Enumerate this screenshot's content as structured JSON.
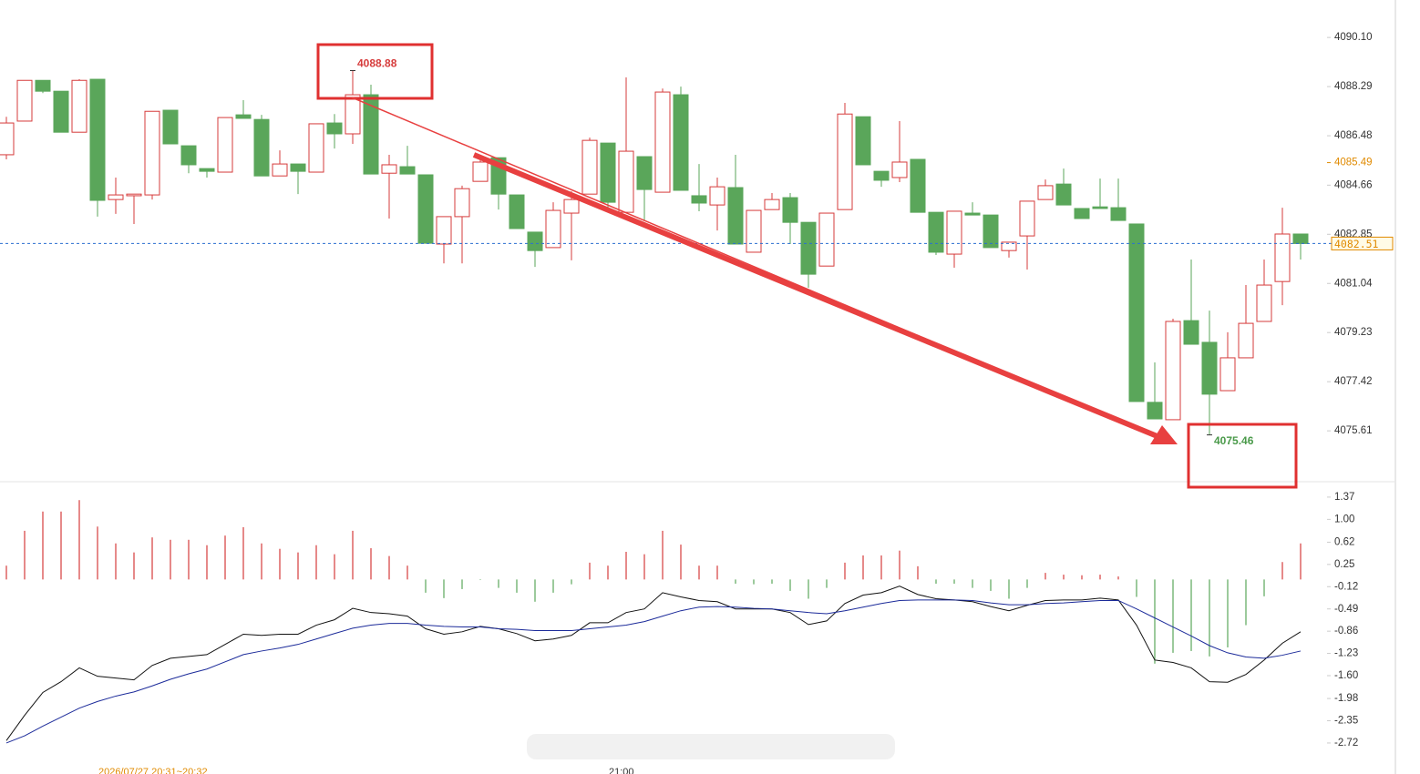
{
  "chart_data": [
    {
      "type": "candlestick",
      "candles": [
        [
          4085.78,
          4087.18,
          4085.61,
          4086.95
        ],
        [
          4087.02,
          4088.52,
          4087.02,
          4088.52
        ],
        [
          4088.52,
          4088.52,
          4088.05,
          4088.12
        ],
        [
          4088.12,
          4088.12,
          4086.61,
          4086.61
        ],
        [
          4086.61,
          4088.56,
          4086.61,
          4088.52
        ],
        [
          4088.56,
          4088.56,
          4083.5,
          4084.1
        ],
        [
          4084.13,
          4084.94,
          4083.6,
          4084.3
        ],
        [
          4084.27,
          4084.33,
          4083.23,
          4084.33
        ],
        [
          4084.3,
          4087.38,
          4084.13,
          4087.38
        ],
        [
          4087.42,
          4087.42,
          4086.18,
          4086.18
        ],
        [
          4086.11,
          4086.11,
          4085.1,
          4085.41
        ],
        [
          4085.27,
          4085.27,
          4084.94,
          4085.17
        ],
        [
          4085.14,
          4087.15,
          4085.14,
          4087.15
        ],
        [
          4087.25,
          4087.79,
          4087.12,
          4087.12
        ],
        [
          4087.08,
          4087.25,
          4085.0,
          4085.0
        ],
        [
          4085.0,
          4085.94,
          4085.0,
          4085.44
        ],
        [
          4085.44,
          4085.44,
          4084.33,
          4085.17
        ],
        [
          4085.14,
          4086.92,
          4085.14,
          4086.92
        ],
        [
          4086.95,
          4087.28,
          4086.01,
          4086.55
        ],
        [
          4086.55,
          4088.88,
          4086.18,
          4087.99
        ],
        [
          4087.99,
          4088.36,
          4085.07,
          4085.07
        ],
        [
          4085.1,
          4085.78,
          4083.43,
          4085.41
        ],
        [
          4085.34,
          4086.11,
          4085.07,
          4085.07
        ],
        [
          4085.04,
          4085.04,
          4082.52,
          4082.52
        ],
        [
          4082.49,
          4083.5,
          4081.78,
          4083.5
        ],
        [
          4083.5,
          4084.64,
          4081.78,
          4084.53
        ],
        [
          4084.8,
          4085.78,
          4084.8,
          4085.51
        ],
        [
          4085.67,
          4085.67,
          4083.76,
          4084.33
        ],
        [
          4084.3,
          4084.3,
          4083.06,
          4083.06
        ],
        [
          4082.93,
          4082.93,
          4081.65,
          4082.25
        ],
        [
          4082.36,
          4084.03,
          4082.36,
          4083.73
        ],
        [
          4083.63,
          4084.43,
          4081.89,
          4084.13
        ],
        [
          4084.33,
          4086.41,
          4084.33,
          4086.31
        ],
        [
          4086.21,
          4086.21,
          4083.73,
          4084.03
        ],
        [
          4083.66,
          4088.63,
          4083.66,
          4085.91
        ],
        [
          4085.71,
          4085.71,
          4083.33,
          4084.5
        ],
        [
          4084.4,
          4088.22,
          4084.4,
          4088.09
        ],
        [
          4087.99,
          4088.29,
          4084.47,
          4084.47
        ],
        [
          4084.27,
          4085.44,
          4083.7,
          4084.0
        ],
        [
          4083.93,
          4084.94,
          4082.99,
          4084.6
        ],
        [
          4084.57,
          4085.78,
          4082.49,
          4082.49
        ],
        [
          4082.19,
          4083.73,
          4082.19,
          4083.73
        ],
        [
          4083.76,
          4084.37,
          4083.76,
          4084.13
        ],
        [
          4084.2,
          4084.37,
          4082.49,
          4083.29
        ],
        [
          4083.29,
          4083.29,
          4080.88,
          4081.38
        ],
        [
          4081.68,
          4083.63,
          4081.68,
          4083.63
        ],
        [
          4083.76,
          4087.69,
          4083.76,
          4087.28
        ],
        [
          4087.18,
          4087.18,
          4085.41,
          4085.41
        ],
        [
          4085.17,
          4085.17,
          4084.6,
          4084.84
        ],
        [
          4084.94,
          4087.02,
          4084.77,
          4085.51
        ],
        [
          4085.61,
          4085.61,
          4083.66,
          4083.66
        ],
        [
          4083.66,
          4083.66,
          4082.09,
          4082.19
        ],
        [
          4082.12,
          4083.7,
          4081.62,
          4083.7
        ],
        [
          4083.63,
          4084.03,
          4083.56,
          4083.56
        ],
        [
          4083.56,
          4083.56,
          4082.36,
          4082.36
        ],
        [
          4082.25,
          4082.56,
          4081.99,
          4082.56
        ],
        [
          4082.79,
          4084.07,
          4081.55,
          4084.07
        ],
        [
          4084.13,
          4084.87,
          4084.13,
          4084.64
        ],
        [
          4084.7,
          4085.27,
          4083.93,
          4083.93
        ],
        [
          4083.8,
          4083.8,
          4083.43,
          4083.43
        ],
        [
          4083.86,
          4084.9,
          4083.8,
          4083.8
        ],
        [
          4083.83,
          4084.9,
          4083.36,
          4083.36
        ],
        [
          4083.23,
          4083.23,
          4076.69,
          4076.69
        ],
        [
          4076.66,
          4078.13,
          4076.05,
          4076.05
        ],
        [
          4076.02,
          4079.74,
          4076.02,
          4079.64
        ],
        [
          4079.67,
          4081.92,
          4078.8,
          4078.8
        ],
        [
          4078.87,
          4080.04,
          4075.46,
          4076.96
        ],
        [
          4077.09,
          4079.24,
          4077.09,
          4078.3
        ],
        [
          4078.3,
          4080.98,
          4078.3,
          4079.57
        ],
        [
          4079.64,
          4081.92,
          4079.64,
          4080.98
        ],
        [
          4081.11,
          4083.83,
          4080.24,
          4082.86
        ],
        [
          4082.86,
          4082.86,
          4081.92,
          4082.51
        ]
      ],
      "up_color": "#d63b3b",
      "down_color": "#5aa65a",
      "ylim": [
        4073.77,
        4091.48
      ],
      "yticks": [
        {
          "value": 4090.1,
          "label": "4090.10"
        },
        4088.29,
        4086.48,
        4084.66,
        4082.85,
        4081.04,
        4079.23,
        4077.42,
        4075.61
      ],
      "high_label": 4088.88,
      "low_label": 4075.46,
      "ref_price": 4085.49,
      "last_price": 4082.51
    },
    {
      "type": "macd",
      "histogram": [
        0.23,
        0.81,
        1.13,
        1.13,
        1.32,
        0.88,
        0.6,
        0.45,
        0.7,
        0.66,
        0.66,
        0.57,
        0.73,
        0.87,
        0.6,
        0.51,
        0.45,
        0.57,
        0.42,
        0.81,
        0.52,
        0.39,
        0.23,
        -0.22,
        -0.31,
        -0.16,
        -0.01,
        -0.14,
        -0.22,
        -0.37,
        -0.22,
        -0.08,
        0.28,
        0.23,
        0.46,
        0.42,
        0.81,
        0.58,
        0.23,
        0.23,
        -0.07,
        -0.08,
        -0.07,
        -0.19,
        -0.32,
        -0.14,
        0.28,
        0.4,
        0.4,
        0.48,
        0.22,
        -0.07,
        -0.07,
        -0.14,
        -0.19,
        -0.32,
        -0.14,
        0.11,
        0.08,
        0.07,
        0.08,
        0.05,
        -0.29,
        -1.4,
        -1.22,
        -1.19,
        -1.28,
        -1.13,
        -0.76,
        -0.28,
        0.29,
        0.6
      ],
      "pos_color": "#d63b3b",
      "neg_color": "#5aa65a",
      "series": [
        {
          "color": "#111111",
          "values": [
            -2.68,
            -2.26,
            -1.88,
            -1.7,
            -1.47,
            -1.61,
            -1.64,
            -1.67,
            -1.43,
            -1.31,
            -1.28,
            -1.25,
            -1.08,
            -0.91,
            -0.93,
            -0.91,
            -0.91,
            -0.76,
            -0.67,
            -0.48,
            -0.55,
            -0.57,
            -0.61,
            -0.82,
            -0.91,
            -0.87,
            -0.78,
            -0.82,
            -0.9,
            -1.02,
            -0.99,
            -0.93,
            -0.72,
            -0.72,
            -0.55,
            -0.49,
            -0.22,
            -0.29,
            -0.35,
            -0.37,
            -0.49,
            -0.49,
            -0.49,
            -0.55,
            -0.75,
            -0.69,
            -0.4,
            -0.26,
            -0.22,
            -0.11,
            -0.25,
            -0.32,
            -0.34,
            -0.37,
            -0.45,
            -0.52,
            -0.43,
            -0.35,
            -0.34,
            -0.34,
            -0.31,
            -0.34,
            -0.76,
            -1.34,
            -1.38,
            -1.47,
            -1.7,
            -1.71,
            -1.58,
            -1.34,
            -1.06,
            -0.87
          ]
        },
        {
          "color": "#1c2b9a",
          "values": [
            -2.72,
            -2.6,
            -2.44,
            -2.29,
            -2.14,
            -2.03,
            -1.94,
            -1.87,
            -1.77,
            -1.66,
            -1.57,
            -1.49,
            -1.37,
            -1.25,
            -1.19,
            -1.14,
            -1.08,
            -0.99,
            -0.9,
            -0.81,
            -0.76,
            -0.73,
            -0.73,
            -0.76,
            -0.78,
            -0.79,
            -0.79,
            -0.82,
            -0.83,
            -0.85,
            -0.85,
            -0.85,
            -0.82,
            -0.79,
            -0.76,
            -0.7,
            -0.61,
            -0.52,
            -0.46,
            -0.45,
            -0.46,
            -0.48,
            -0.49,
            -0.52,
            -0.55,
            -0.57,
            -0.52,
            -0.46,
            -0.4,
            -0.35,
            -0.34,
            -0.34,
            -0.34,
            -0.35,
            -0.39,
            -0.42,
            -0.42,
            -0.4,
            -0.39,
            -0.37,
            -0.35,
            -0.35,
            -0.49,
            -0.64,
            -0.79,
            -0.94,
            -1.1,
            -1.22,
            -1.29,
            -1.31,
            -1.26,
            -1.19
          ]
        }
      ],
      "ylim": [
        -3.16,
        1.49
      ],
      "yticks": [
        1.37,
        {
          "value": 1,
          "label": "1.00"
        },
        0.62,
        0.25,
        -0.12,
        -0.49,
        -0.86,
        -1.23,
        {
          "value": -1.6,
          "label": "-1.60"
        },
        -1.98,
        -2.35,
        -2.72
      ]
    }
  ],
  "footer": {
    "date_range": "2026/07/27 20:31~20:32",
    "time": "21:00"
  }
}
